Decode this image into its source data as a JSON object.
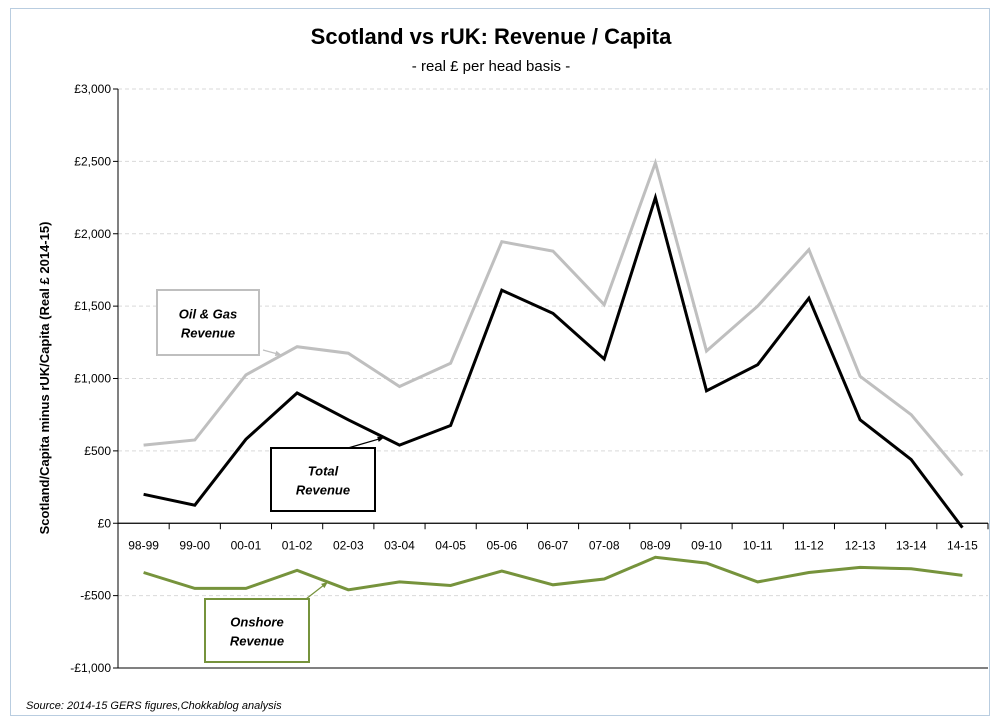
{
  "chart_data": {
    "type": "line",
    "title": "Scotland vs rUK: Revenue / Capita",
    "subtitle": "- real £ per head basis -",
    "ylabel": "Scotland/Capita minus rUK/Capita (Real £ 2014-15)",
    "xlabel": "",
    "ylim": [
      -1000,
      3000
    ],
    "yticks": [
      3000,
      2500,
      2000,
      1500,
      1000,
      500,
      0,
      -500,
      -1000
    ],
    "ytick_labels": [
      "£3,000",
      "£2,500",
      "£2,000",
      "£1,500",
      "£1,000",
      "£500",
      "£0",
      "-£500",
      "-£1,000"
    ],
    "categories": [
      "98-99",
      "99-00",
      "00-01",
      "01-02",
      "02-03",
      "03-04",
      "04-05",
      "05-06",
      "06-07",
      "07-08",
      "08-09",
      "09-10",
      "10-11",
      "11-12",
      "12-13",
      "13-14",
      "14-15"
    ],
    "grid": true,
    "series": [
      {
        "key": "oil_gas",
        "color": "#bfbfbf",
        "values": [
          540,
          575,
          1025,
          1220,
          1175,
          945,
          1105,
          1945,
          1880,
          1510,
          2490,
          1190,
          1500,
          1890,
          1015,
          750,
          330
        ]
      },
      {
        "key": "total",
        "color": "#000000",
        "values": [
          200,
          125,
          580,
          900,
          715,
          540,
          675,
          1610,
          1450,
          1135,
          2250,
          915,
          1095,
          1555,
          715,
          440,
          -30
        ]
      },
      {
        "key": "onshore",
        "color": "#76933c",
        "values": [
          -340,
          -450,
          -450,
          -325,
          -460,
          -405,
          -430,
          -330,
          -425,
          -385,
          -235,
          -275,
          -405,
          -340,
          -305,
          -315,
          -360
        ]
      }
    ],
    "annotations": [
      {
        "series": "oil_gas",
        "line1": "Oil & Gas",
        "line2": "Revenue",
        "border_color": "#bfbfbf"
      },
      {
        "series": "total",
        "line1": "Total",
        "line2": "Revenue",
        "border_color": "#000000"
      },
      {
        "series": "onshore",
        "line1": "Onshore",
        "line2": "Revenue",
        "border_color": "#76933c"
      }
    ]
  },
  "source_note": "Source: 2014-15 GERS figures,Chokkablog analysis"
}
